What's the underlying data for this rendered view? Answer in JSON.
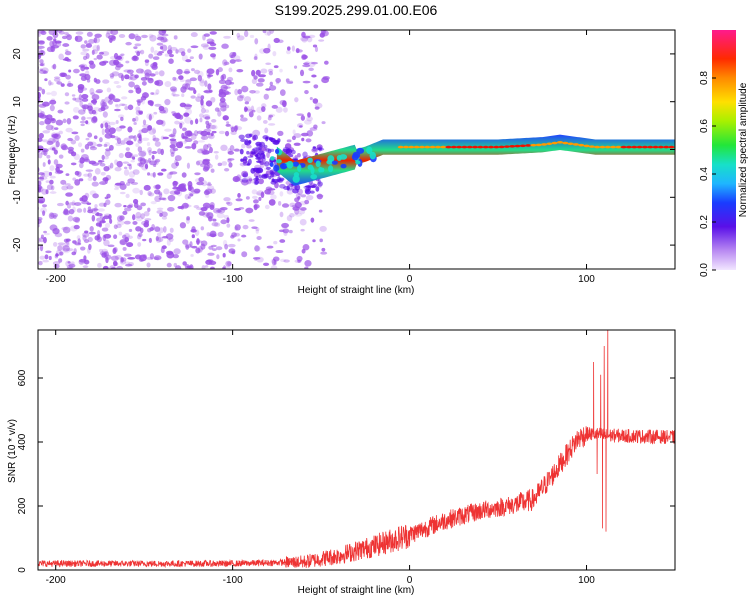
{
  "title": "S199.2025.299.01.00.E06",
  "colors": {
    "snr_line": "#ee3333",
    "scatter": "#9a4fe6",
    "axis": "#000000"
  },
  "chart_data": [
    {
      "type": "heatmap",
      "name": "spectrogram",
      "xlabel": "Height of straight line (km)",
      "ylabel": "Frequency (Hz)",
      "xlim": [
        -210,
        150
      ],
      "ylim": [
        -25,
        25
      ],
      "xticks": [
        -200,
        -100,
        0,
        100
      ],
      "yticks": [
        -20,
        -10,
        0,
        10,
        20
      ],
      "ridge": {
        "x": [
          -75,
          -65,
          -55,
          -45,
          -35,
          -25,
          -15,
          -5,
          0,
          20,
          50,
          75,
          85,
          95,
          105,
          115,
          150
        ],
        "freq": [
          -2,
          -5,
          -4,
          -3,
          -2,
          -1,
          0.5,
          0.5,
          0.5,
          0.5,
          0.5,
          1.0,
          1.5,
          1.0,
          0.5,
          0.5,
          0.5
        ]
      },
      "colorbar": {
        "label": "Normalized spectral amplitude",
        "range": [
          0,
          1
        ],
        "ticks": [
          0.0,
          0.2,
          0.4,
          0.6,
          0.8
        ]
      }
    },
    {
      "type": "line",
      "name": "snr",
      "xlabel": "Height of straight line (km)",
      "ylabel": "SNR (10 * v/v)",
      "xlim": [
        -210,
        150
      ],
      "ylim": [
        0,
        750
      ],
      "xticks": [
        -200,
        -100,
        0,
        100
      ],
      "yticks": [
        0,
        200,
        400,
        600
      ],
      "trend": {
        "x": [
          -210,
          -100,
          -60,
          -40,
          -20,
          0,
          20,
          40,
          60,
          70,
          80,
          90,
          95,
          100,
          105,
          110,
          115,
          150
        ],
        "y": [
          20,
          20,
          25,
          45,
          75,
          110,
          155,
          185,
          205,
          220,
          290,
          370,
          410,
          425,
          425,
          420,
          420,
          415
        ]
      },
      "spikes": [
        {
          "x": 104,
          "y": 650
        },
        {
          "x": 106,
          "y": 300
        },
        {
          "x": 108,
          "y": 610
        },
        {
          "x": 109,
          "y": 130
        },
        {
          "x": 110,
          "y": 700
        },
        {
          "x": 111,
          "y": 120
        },
        {
          "x": 112,
          "y": 750
        }
      ]
    }
  ]
}
